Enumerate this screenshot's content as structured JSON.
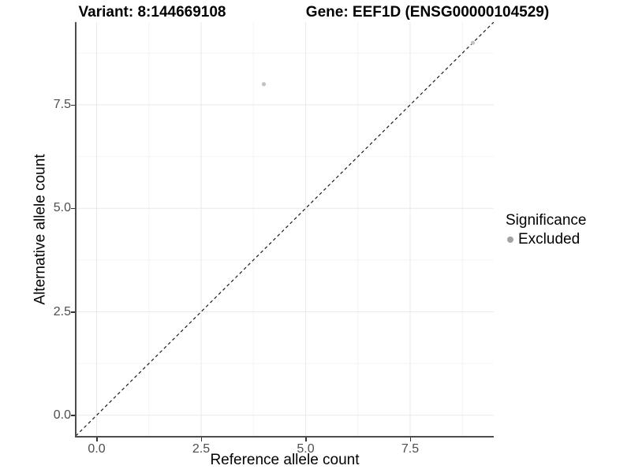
{
  "chart_data": {
    "type": "scatter",
    "title_left": "Variant: 8:144669108",
    "title_right": "Gene: EEF1D (ENSG00000104529)",
    "xlabel": "Reference allele count",
    "ylabel": "Alternative allele count",
    "xlim": [
      -0.5,
      9.5
    ],
    "ylim": [
      -0.5,
      9.5
    ],
    "x_ticks": {
      "values": [
        0,
        2.5,
        5,
        7.5
      ],
      "labels": [
        "0.0",
        "2.5",
        "5.0",
        "7.5"
      ]
    },
    "y_ticks": {
      "values": [
        0,
        2.5,
        5,
        7.5
      ],
      "labels": [
        "0.0",
        "2.5",
        "5.0",
        "7.5"
      ]
    },
    "x_minor_gridlines": [
      1.25,
      3.75,
      6.25,
      8.75
    ],
    "y_minor_gridlines": [
      1.25,
      3.75,
      6.25,
      8.75
    ],
    "grid": {
      "show_major": true,
      "show_minor": true,
      "major_color": "#e9e9e9",
      "minor_color": "#f4f4f4"
    },
    "identity_line": {
      "equation": "y = x",
      "style": "dashed",
      "color": "#1a1a1a"
    },
    "series": [
      {
        "name": "Excluded",
        "color": "#c3c3c3",
        "points": [
          {
            "x": 4,
            "y": 8
          },
          {
            "x": 9,
            "y": 9
          }
        ]
      }
    ],
    "legend": {
      "title": "Significance",
      "position": "right",
      "entries": [
        {
          "label": "Excluded",
          "marker": "circle",
          "color": "#a3a3a3"
        }
      ]
    }
  }
}
